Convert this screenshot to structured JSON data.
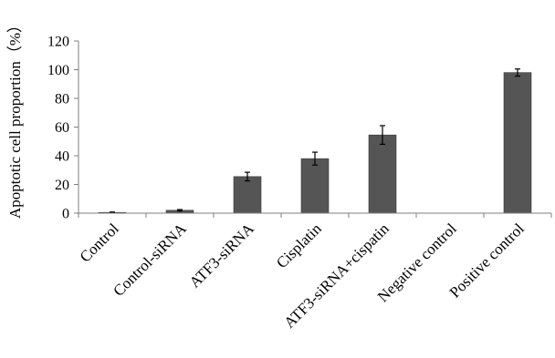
{
  "chart_data": {
    "type": "bar",
    "title": "",
    "xlabel": "",
    "ylabel": "Apoptotic  cell proportion（%）",
    "ylim": [
      0,
      120
    ],
    "yticks": [
      0,
      20,
      40,
      60,
      80,
      100,
      120
    ],
    "grid": false,
    "bar_color": "#555555",
    "categories": [
      "Control",
      "Control-siRNA",
      "ATF3-siRNA",
      "Cisplatin",
      "ATF3-siRNA+cispatin",
      "Negative control",
      "Positive control"
    ],
    "series": [
      {
        "values": [
          0.5,
          2,
          25.5,
          38,
          54.5,
          0,
          98
        ],
        "errors": [
          0.3,
          0.5,
          3,
          4.5,
          6.5,
          0,
          2.5
        ]
      }
    ]
  }
}
